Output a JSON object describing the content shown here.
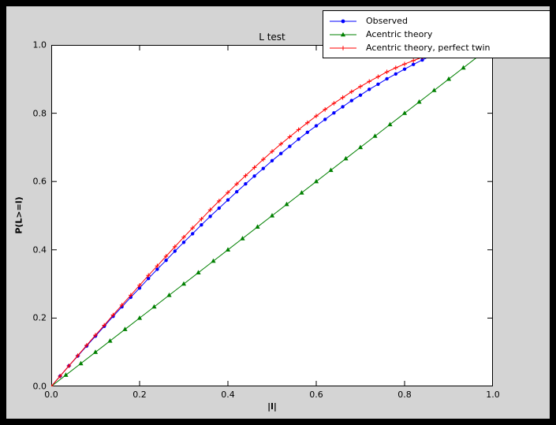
{
  "colors": {
    "window_bg": "#000000",
    "figure_bg": "#d4d4d4",
    "axes_bg": "#ffffff",
    "axes_frame": "#000000",
    "observed": "#0000ff",
    "acentric_theory": "#008000",
    "perfect_twin": "#ff0000"
  },
  "chart_data": {
    "type": "line",
    "title": "L test",
    "xlabel": "|l|",
    "ylabel": "P(L>=l)",
    "xlim": [
      0.0,
      1.0
    ],
    "ylim": [
      0.0,
      1.0
    ],
    "xticks": [
      0.0,
      0.2,
      0.4,
      0.6,
      0.8,
      1.0
    ],
    "xtick_labels": [
      "0.0",
      "0.2",
      "0.4",
      "0.6",
      "0.8",
      "1.0"
    ],
    "yticks": [
      0.0,
      0.2,
      0.4,
      0.6,
      0.8,
      1.0
    ],
    "ytick_labels": [
      "0.0",
      "0.2",
      "0.4",
      "0.6",
      "0.8",
      "1.0"
    ],
    "grid": false,
    "legend_position": "upper right",
    "series": [
      {
        "name": "Observed",
        "color": "#0000ff",
        "marker": "circle",
        "x": [
          0.0,
          0.02,
          0.04,
          0.06,
          0.08,
          0.1,
          0.12,
          0.14,
          0.16,
          0.18,
          0.2,
          0.22,
          0.24,
          0.26,
          0.28,
          0.3,
          0.32,
          0.34,
          0.36,
          0.38,
          0.4,
          0.42,
          0.44,
          0.46,
          0.48,
          0.5,
          0.52,
          0.54,
          0.56,
          0.58,
          0.6,
          0.62,
          0.64,
          0.66,
          0.68,
          0.7,
          0.72,
          0.74,
          0.76,
          0.78,
          0.8,
          0.82,
          0.84,
          0.86
        ],
        "y": [
          0.0,
          0.03,
          0.06,
          0.089,
          0.118,
          0.147,
          0.176,
          0.205,
          0.233,
          0.261,
          0.288,
          0.316,
          0.343,
          0.369,
          0.396,
          0.422,
          0.447,
          0.473,
          0.498,
          0.522,
          0.546,
          0.57,
          0.593,
          0.616,
          0.638,
          0.661,
          0.682,
          0.703,
          0.724,
          0.744,
          0.763,
          0.782,
          0.801,
          0.819,
          0.837,
          0.853,
          0.87,
          0.885,
          0.901,
          0.915,
          0.929,
          0.943,
          0.956,
          0.968
        ]
      },
      {
        "name": "Acentric theory",
        "color": "#008000",
        "marker": "triangle-up",
        "x": [
          0.0,
          0.033,
          0.067,
          0.1,
          0.133,
          0.167,
          0.2,
          0.233,
          0.267,
          0.3,
          0.333,
          0.367,
          0.4,
          0.433,
          0.467,
          0.5,
          0.533,
          0.567,
          0.6,
          0.633,
          0.667,
          0.7,
          0.733,
          0.767,
          0.8,
          0.833,
          0.867,
          0.9,
          0.933,
          0.967
        ],
        "y": [
          0.0,
          0.033,
          0.067,
          0.1,
          0.133,
          0.167,
          0.2,
          0.233,
          0.267,
          0.3,
          0.333,
          0.367,
          0.4,
          0.433,
          0.467,
          0.5,
          0.533,
          0.567,
          0.6,
          0.633,
          0.667,
          0.7,
          0.733,
          0.767,
          0.8,
          0.833,
          0.867,
          0.9,
          0.933,
          0.967
        ]
      },
      {
        "name": "Acentric theory, perfect twin",
        "color": "#ff0000",
        "marker": "plus",
        "x": [
          0.0,
          0.02,
          0.04,
          0.06,
          0.08,
          0.1,
          0.12,
          0.14,
          0.16,
          0.18,
          0.2,
          0.22,
          0.24,
          0.26,
          0.28,
          0.3,
          0.32,
          0.34,
          0.36,
          0.38,
          0.4,
          0.42,
          0.44,
          0.46,
          0.48,
          0.5,
          0.52,
          0.54,
          0.56,
          0.58,
          0.6,
          0.62,
          0.64,
          0.66,
          0.68,
          0.7,
          0.72,
          0.74,
          0.76,
          0.78,
          0.8,
          0.82,
          0.84
        ],
        "y": [
          0.0,
          0.03,
          0.06,
          0.09,
          0.12,
          0.15,
          0.179,
          0.209,
          0.238,
          0.267,
          0.296,
          0.325,
          0.353,
          0.381,
          0.409,
          0.437,
          0.464,
          0.49,
          0.517,
          0.543,
          0.568,
          0.593,
          0.617,
          0.641,
          0.665,
          0.688,
          0.71,
          0.731,
          0.752,
          0.772,
          0.792,
          0.811,
          0.829,
          0.846,
          0.863,
          0.878,
          0.893,
          0.907,
          0.921,
          0.933,
          0.944,
          0.954,
          0.964
        ]
      }
    ]
  }
}
